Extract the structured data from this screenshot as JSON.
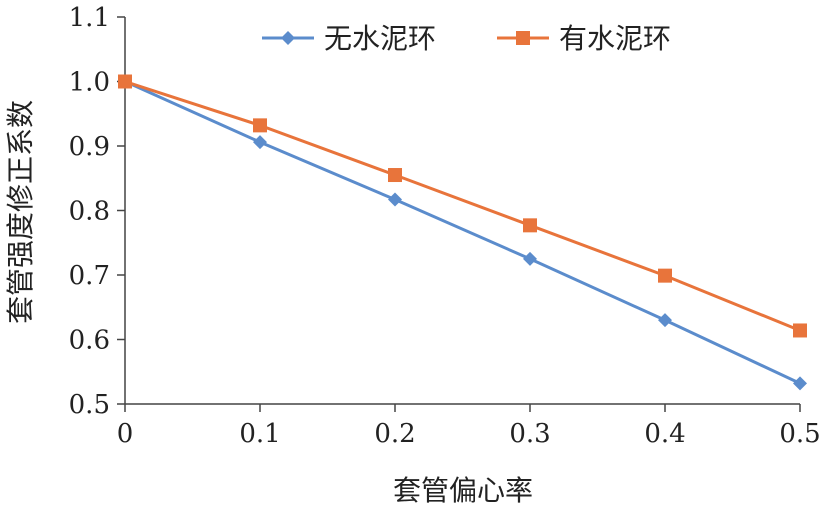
{
  "chart_data": {
    "type": "line",
    "xlabel": "套管偏心率",
    "ylabel": "套管强度修正系数",
    "xlim": [
      0,
      0.5
    ],
    "ylim": [
      0.5,
      1.1
    ],
    "x_ticks": [
      "0",
      "0.1",
      "0.2",
      "0.3",
      "0.4",
      "0.5"
    ],
    "y_ticks": [
      "0.5",
      "0.6",
      "0.7",
      "0.8",
      "0.9",
      "1.0",
      "1.1"
    ],
    "grid": false,
    "legend_position": "top",
    "x": [
      0,
      0.1,
      0.2,
      0.3,
      0.4,
      0.5
    ],
    "series": [
      {
        "name": "无水泥环",
        "color": "#5b8ccc",
        "marker": "diamond",
        "values": [
          1.0,
          0.906,
          0.817,
          0.725,
          0.63,
          0.532
        ]
      },
      {
        "name": "有水泥环",
        "color": "#e8743b",
        "marker": "square",
        "values": [
          1.0,
          0.932,
          0.855,
          0.777,
          0.699,
          0.614
        ]
      }
    ]
  }
}
